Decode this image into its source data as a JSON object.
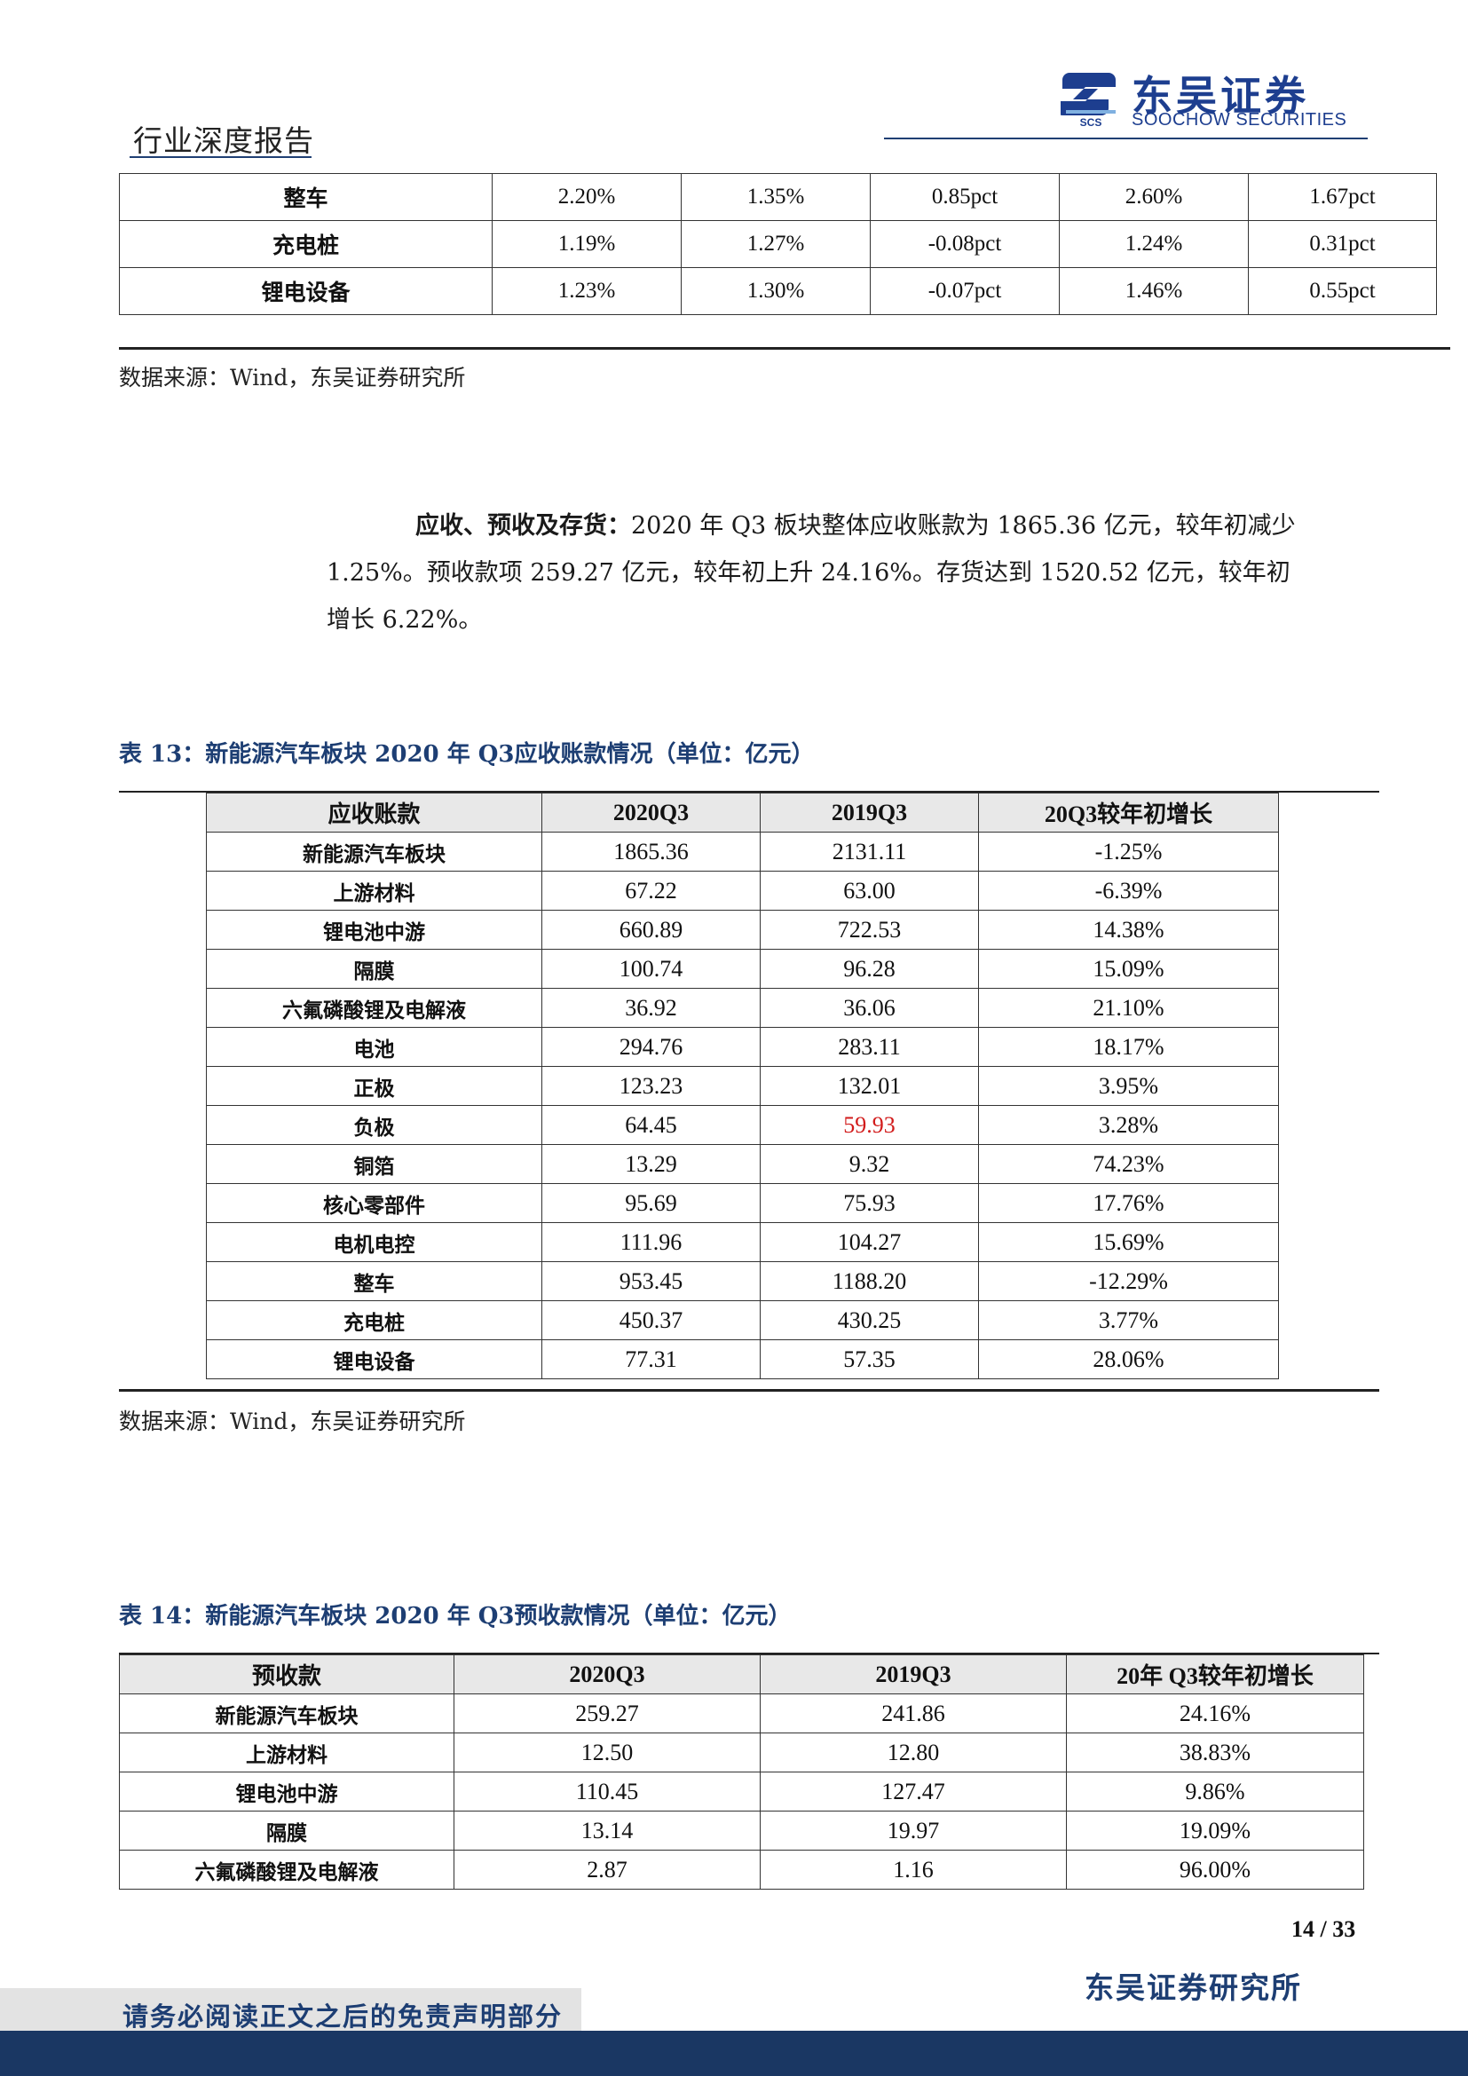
{
  "header": {
    "report_type": "行业深度报告",
    "logo_cn": "东吴证券",
    "logo_en": "SOOCHOW SECURITIES",
    "logo_badge": "SCS"
  },
  "top_table": {
    "rows": [
      [
        "整车",
        "2.20%",
        "1.35%",
        "0.85pct",
        "2.60%",
        "1.67pct"
      ],
      [
        "充电桩",
        "1.19%",
        "1.27%",
        "-0.08pct",
        "1.24%",
        "0.31pct"
      ],
      [
        "锂电设备",
        "1.23%",
        "1.30%",
        "-0.07pct",
        "1.46%",
        "0.55pct"
      ]
    ]
  },
  "source_1": "数据来源：Wind，东吴证券研究所",
  "paragraph": {
    "lead": "应收、预收及存货：",
    "line1": "2020 年 Q3 板块整体应收账款为 1865.36 亿元，较年初减少",
    "line2": "1.25%。预收款项 259.27 亿元，较年初上升 24.16%。存货达到 1520.52 亿元，较年初",
    "line3": "增长 6.22%。"
  },
  "table13": {
    "caption": "表 13：新能源汽车板块 2020 年 Q3应收账款情况（单位：亿元）",
    "headers": [
      "应收账款",
      "2020Q3",
      "2019Q3",
      "20Q3较年初增长"
    ],
    "rows": [
      [
        "新能源汽车板块",
        "1865.36",
        "2131.11",
        "-1.25%"
      ],
      [
        "上游材料",
        "67.22",
        "63.00",
        "-6.39%"
      ],
      [
        "锂电池中游",
        "660.89",
        "722.53",
        "14.38%"
      ],
      [
        "隔膜",
        "100.74",
        "96.28",
        "15.09%"
      ],
      [
        "六氟磷酸锂及电解液",
        "36.92",
        "36.06",
        "21.10%"
      ],
      [
        "电池",
        "294.76",
        "283.11",
        "18.17%"
      ],
      [
        "正极",
        "123.23",
        "132.01",
        "3.95%"
      ],
      [
        "负极",
        "64.45",
        "59.93",
        "3.28%"
      ],
      [
        "铜箔",
        "13.29",
        "9.32",
        "74.23%"
      ],
      [
        "核心零部件",
        "95.69",
        "75.93",
        "17.76%"
      ],
      [
        "电机电控",
        "111.96",
        "104.27",
        "15.69%"
      ],
      [
        "整车",
        "953.45",
        "1188.20",
        "-12.29%"
      ],
      [
        "充电桩",
        "450.37",
        "430.25",
        "3.77%"
      ],
      [
        "锂电设备",
        "77.31",
        "57.35",
        "28.06%"
      ]
    ],
    "highlight_color": "#d21b1b"
  },
  "source_2": "数据来源：Wind，东吴证券研究所",
  "table14": {
    "caption": "表 14：新能源汽车板块 2020 年 Q3预收款情况（单位：亿元）",
    "headers": [
      "预收款",
      "2020Q3",
      "2019Q3",
      "20年 Q3较年初增长"
    ],
    "rows": [
      [
        "新能源汽车板块",
        "259.27",
        "241.86",
        "24.16%"
      ],
      [
        "上游材料",
        "12.50",
        "12.80",
        "38.83%"
      ],
      [
        "锂电池中游",
        "110.45",
        "127.47",
        "9.86%"
      ],
      [
        "隔膜",
        "13.14",
        "19.97",
        "19.09%"
      ],
      [
        "六氟磷酸锂及电解液",
        "2.87",
        "1.16",
        "96.00%"
      ]
    ]
  },
  "footer": {
    "page_number": "14 / 33",
    "institute": "东吴证券研究所",
    "disclaimer": "请务必阅读正文之后的免责声明部分"
  }
}
